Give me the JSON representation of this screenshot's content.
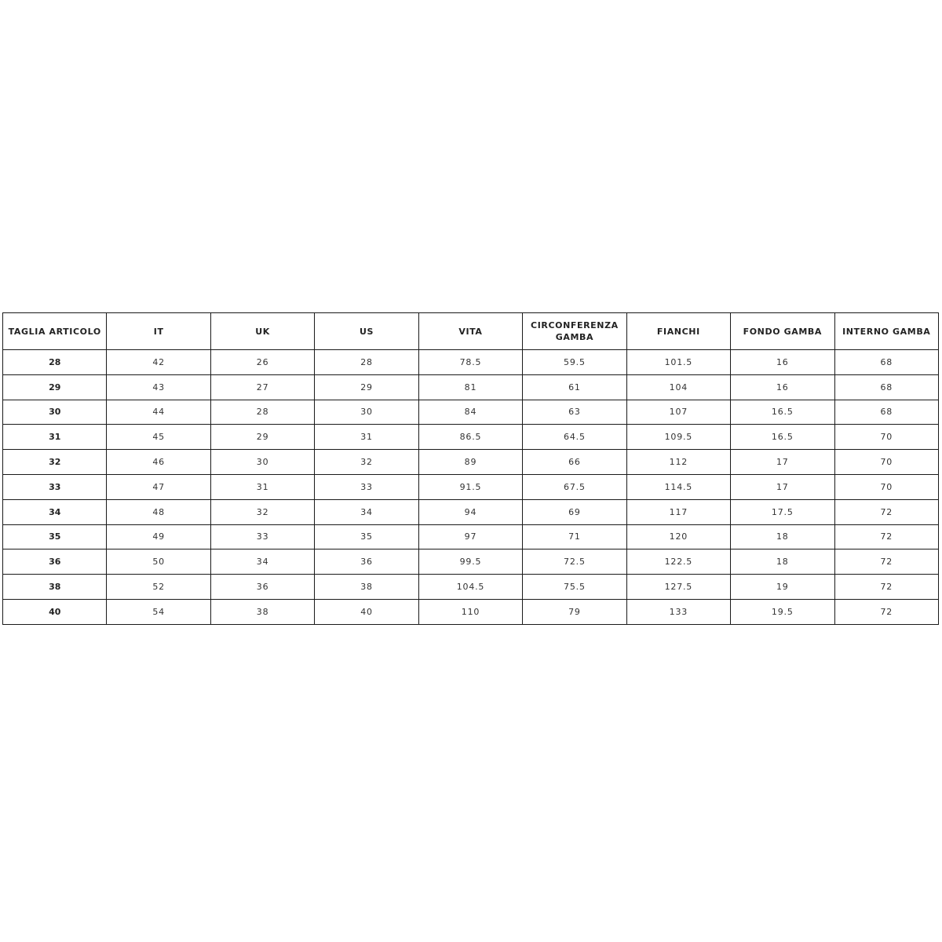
{
  "table": {
    "headers": [
      "TAGLIA ARTICOLO",
      "IT",
      "UK",
      "US",
      "VITA",
      "CIRCONFERENZA GAMBA",
      "FIANCHI",
      "FONDO GAMBA",
      "INTERNO GAMBA"
    ],
    "rows": [
      [
        "28",
        "42",
        "26",
        "28",
        "78.5",
        "59.5",
        "101.5",
        "16",
        "68"
      ],
      [
        "29",
        "43",
        "27",
        "29",
        "81",
        "61",
        "104",
        "16",
        "68"
      ],
      [
        "30",
        "44",
        "28",
        "30",
        "84",
        "63",
        "107",
        "16.5",
        "68"
      ],
      [
        "31",
        "45",
        "29",
        "31",
        "86.5",
        "64.5",
        "109.5",
        "16.5",
        "70"
      ],
      [
        "32",
        "46",
        "30",
        "32",
        "89",
        "66",
        "112",
        "17",
        "70"
      ],
      [
        "33",
        "47",
        "31",
        "33",
        "91.5",
        "67.5",
        "114.5",
        "17",
        "70"
      ],
      [
        "34",
        "48",
        "32",
        "34",
        "94",
        "69",
        "117",
        "17.5",
        "72"
      ],
      [
        "35",
        "49",
        "33",
        "35",
        "97",
        "71",
        "120",
        "18",
        "72"
      ],
      [
        "36",
        "50",
        "34",
        "36",
        "99.5",
        "72.5",
        "122.5",
        "18",
        "72"
      ],
      [
        "38",
        "52",
        "36",
        "38",
        "104.5",
        "75.5",
        "127.5",
        "19",
        "72"
      ],
      [
        "40",
        "54",
        "38",
        "40",
        "110",
        "79",
        "133",
        "19.5",
        "72"
      ]
    ]
  }
}
